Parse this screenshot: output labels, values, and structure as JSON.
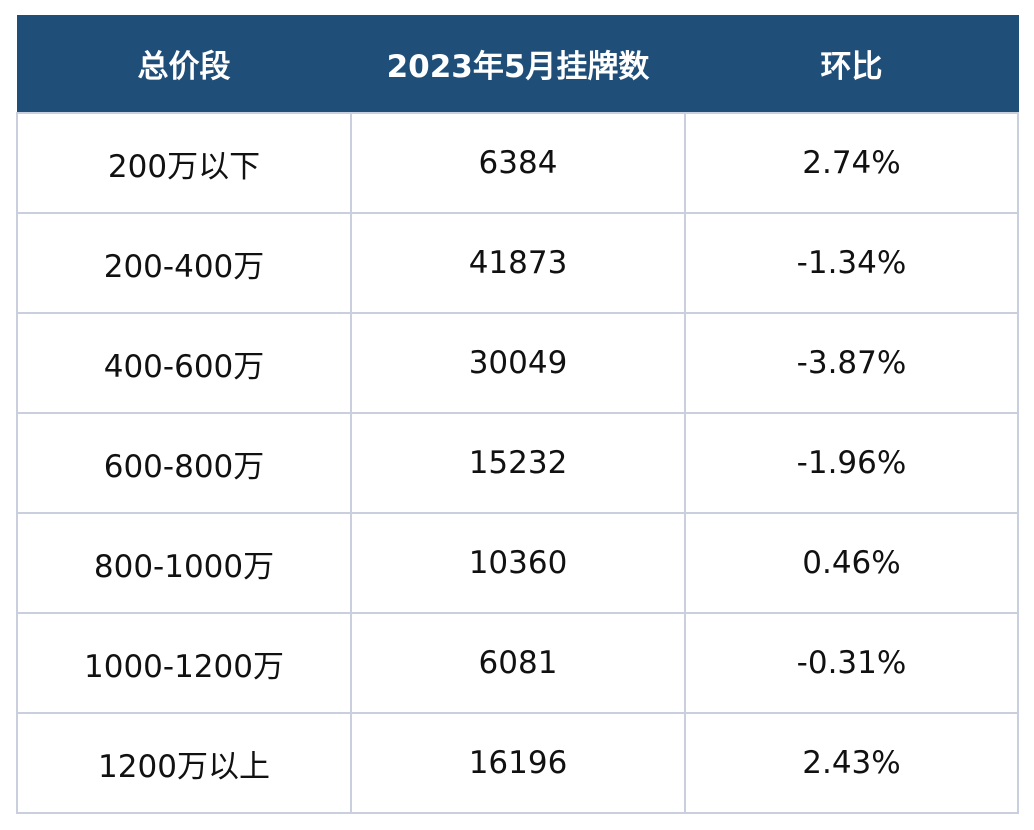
{
  "table": {
    "headers": [
      "总价段",
      "2023年5月挂牌数",
      "环比"
    ],
    "rows": [
      [
        "200万以下",
        "6384",
        "2.74%"
      ],
      [
        "200-400万",
        "41873",
        "-1.34%"
      ],
      [
        "400-600万",
        "30049",
        "-3.87%"
      ],
      [
        "600-800万",
        "15232",
        "-1.96%"
      ],
      [
        "800-1000万",
        "10360",
        "0.46%"
      ],
      [
        "1000-1200万",
        "6081",
        "-0.31%"
      ],
      [
        "1200万以上",
        "16196",
        "2.43%"
      ]
    ]
  },
  "colors": {
    "header_bg": "#1f4e79",
    "header_text": "#ffffff",
    "grid": "#c9cfdc"
  }
}
